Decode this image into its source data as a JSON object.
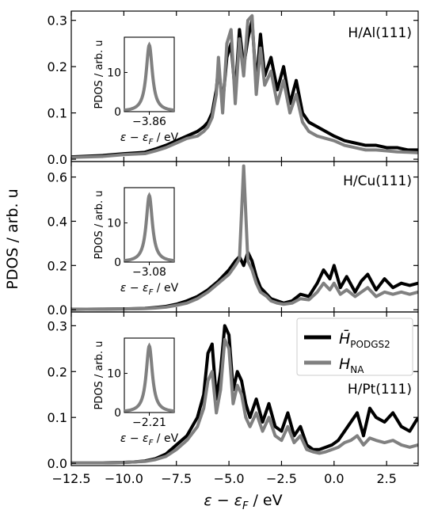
{
  "figure": {
    "shared_xlabel_main": "ε − ε",
    "shared_xlabel_sub": "F",
    "shared_xlabel_unit": " / eV",
    "shared_ylabel": "PDOS / arb. u"
  },
  "legend": {
    "placement": "top-right of bottom panel",
    "items": [
      {
        "main": "H̄",
        "sub": "PODGS2",
        "color": "#000000"
      },
      {
        "main": "H",
        "sub": "NA",
        "color": "#808080"
      }
    ]
  },
  "colors": {
    "podgs2": "#000000",
    "na": "#808080"
  },
  "chart_data": [
    {
      "type": "line",
      "title": "H/Al(111)",
      "xlim": [
        -12.5,
        4.0
      ],
      "ylim": [
        -0.005,
        0.32
      ],
      "xticks": [
        -12.5,
        -10.0,
        -7.5,
        -5.0,
        -2.5,
        0.0,
        2.5
      ],
      "yticks": [
        0.0,
        0.1,
        0.2,
        0.3
      ],
      "ytick_labels": [
        "0.0",
        "0.1",
        "0.2",
        "0.3"
      ],
      "series": [
        {
          "name": "H̄ PODGS2",
          "x": [
            -12.5,
            -11.0,
            -10.0,
            -9.0,
            -8.5,
            -8.0,
            -7.5,
            -7.0,
            -6.5,
            -6.2,
            -6.0,
            -5.8,
            -5.6,
            -5.5,
            -5.3,
            -5.1,
            -4.9,
            -4.7,
            -4.5,
            -4.3,
            -4.1,
            -3.9,
            -3.7,
            -3.5,
            -3.3,
            -3.0,
            -2.7,
            -2.4,
            -2.1,
            -1.8,
            -1.5,
            -1.2,
            -0.8,
            -0.4,
            0.0,
            0.5,
            1.0,
            1.5,
            2.0,
            2.5,
            3.0,
            3.5,
            4.0
          ],
          "y": [
            0.005,
            0.008,
            0.012,
            0.015,
            0.022,
            0.03,
            0.04,
            0.05,
            0.06,
            0.07,
            0.08,
            0.1,
            0.15,
            0.2,
            0.12,
            0.22,
            0.25,
            0.14,
            0.28,
            0.2,
            0.26,
            0.3,
            0.16,
            0.27,
            0.18,
            0.22,
            0.15,
            0.2,
            0.12,
            0.17,
            0.1,
            0.08,
            0.07,
            0.06,
            0.05,
            0.04,
            0.035,
            0.03,
            0.03,
            0.025,
            0.025,
            0.02,
            0.02
          ]
        },
        {
          "name": "H NA",
          "x": [
            -12.5,
            -11.0,
            -10.0,
            -9.0,
            -8.5,
            -8.0,
            -7.5,
            -7.0,
            -6.5,
            -6.2,
            -6.0,
            -5.8,
            -5.6,
            -5.5,
            -5.3,
            -5.1,
            -4.9,
            -4.7,
            -4.5,
            -4.3,
            -4.1,
            -3.9,
            -3.7,
            -3.5,
            -3.3,
            -3.0,
            -2.7,
            -2.4,
            -2.1,
            -1.8,
            -1.5,
            -1.2,
            -0.8,
            -0.4,
            0.0,
            0.5,
            1.0,
            1.5,
            2.0,
            2.5,
            3.0,
            3.5,
            4.0
          ],
          "y": [
            0.004,
            0.006,
            0.01,
            0.012,
            0.018,
            0.025,
            0.035,
            0.045,
            0.05,
            0.06,
            0.07,
            0.09,
            0.14,
            0.22,
            0.1,
            0.25,
            0.28,
            0.12,
            0.26,
            0.18,
            0.3,
            0.31,
            0.14,
            0.24,
            0.16,
            0.19,
            0.12,
            0.17,
            0.1,
            0.14,
            0.08,
            0.06,
            0.05,
            0.045,
            0.04,
            0.03,
            0.025,
            0.02,
            0.02,
            0.018,
            0.016,
            0.015,
            0.014
          ]
        }
      ],
      "inset": {
        "xtick_label": "−3.86",
        "ytick_labels": [
          "0",
          "10"
        ],
        "yticks": [
          0,
          10
        ],
        "ylim": [
          0,
          19
        ],
        "peak_height": 17,
        "half_width": 0.15,
        "xlim": [
          -1,
          1
        ]
      }
    },
    {
      "type": "line",
      "title": "H/Cu(111)",
      "xlim": [
        -12.5,
        4.0
      ],
      "ylim": [
        -0.01,
        0.67
      ],
      "xticks": [
        -12.5,
        -10.0,
        -7.5,
        -5.0,
        -2.5,
        0.0,
        2.5
      ],
      "yticks": [
        0.0,
        0.2,
        0.4,
        0.6
      ],
      "ytick_labels": [
        "0.0",
        "0.2",
        "0.4",
        "0.6"
      ],
      "series": [
        {
          "name": "H̄ PODGS2",
          "x": [
            -12.5,
            -11.0,
            -10.0,
            -9.0,
            -8.5,
            -8.0,
            -7.5,
            -7.0,
            -6.5,
            -6.0,
            -5.5,
            -5.0,
            -4.7,
            -4.5,
            -4.3,
            -4.1,
            -3.9,
            -3.7,
            -3.5,
            -3.2,
            -3.0,
            -2.7,
            -2.4,
            -2.0,
            -1.6,
            -1.2,
            -0.8,
            -0.5,
            -0.2,
            0.0,
            0.3,
            0.6,
            1.0,
            1.3,
            1.6,
            2.0,
            2.4,
            2.8,
            3.2,
            3.6,
            4.0
          ],
          "y": [
            0.002,
            0.003,
            0.004,
            0.006,
            0.01,
            0.015,
            0.025,
            0.04,
            0.06,
            0.09,
            0.13,
            0.18,
            0.22,
            0.24,
            0.2,
            0.26,
            0.22,
            0.15,
            0.1,
            0.07,
            0.05,
            0.04,
            0.03,
            0.04,
            0.07,
            0.06,
            0.12,
            0.18,
            0.14,
            0.2,
            0.1,
            0.15,
            0.08,
            0.13,
            0.16,
            0.09,
            0.14,
            0.1,
            0.12,
            0.11,
            0.12
          ]
        },
        {
          "name": "H NA",
          "x": [
            -12.5,
            -11.0,
            -10.0,
            -9.0,
            -8.5,
            -8.0,
            -7.5,
            -7.0,
            -6.5,
            -6.0,
            -5.5,
            -5.0,
            -4.7,
            -4.5,
            -4.3,
            -4.1,
            -3.9,
            -3.7,
            -3.5,
            -3.2,
            -3.0,
            -2.7,
            -2.4,
            -2.0,
            -1.6,
            -1.2,
            -0.8,
            -0.5,
            -0.2,
            0.0,
            0.3,
            0.6,
            1.0,
            1.3,
            1.6,
            2.0,
            2.4,
            2.8,
            3.2,
            3.6,
            4.0
          ],
          "y": [
            0.002,
            0.003,
            0.004,
            0.005,
            0.008,
            0.012,
            0.02,
            0.03,
            0.05,
            0.08,
            0.12,
            0.16,
            0.2,
            0.23,
            0.65,
            0.22,
            0.18,
            0.12,
            0.08,
            0.06,
            0.04,
            0.03,
            0.025,
            0.03,
            0.05,
            0.045,
            0.08,
            0.12,
            0.09,
            0.12,
            0.07,
            0.09,
            0.06,
            0.08,
            0.1,
            0.06,
            0.08,
            0.07,
            0.08,
            0.07,
            0.08
          ]
        }
      ],
      "inset": {
        "xtick_label": "−3.08",
        "ytick_labels": [
          "0",
          "10"
        ],
        "yticks": [
          0,
          10
        ],
        "ylim": [
          0,
          19
        ],
        "peak_height": 17,
        "half_width": 0.15,
        "xlim": [
          -1,
          1
        ]
      }
    },
    {
      "type": "line",
      "title": "H/Pt(111)",
      "xlim": [
        -12.5,
        4.0
      ],
      "ylim": [
        -0.005,
        0.33
      ],
      "xticks": [
        -12.5,
        -10.0,
        -7.5,
        -5.0,
        -2.5,
        0.0,
        2.5
      ],
      "yticks": [
        0.0,
        0.1,
        0.2,
        0.3
      ],
      "ytick_labels": [
        "0.0",
        "0.1",
        "0.2",
        "0.3"
      ],
      "series": [
        {
          "name": "H̄ PODGS2",
          "x": [
            -12.5,
            -11.0,
            -10.0,
            -9.5,
            -9.0,
            -8.5,
            -8.0,
            -7.5,
            -7.0,
            -6.5,
            -6.2,
            -6.0,
            -5.8,
            -5.6,
            -5.4,
            -5.2,
            -5.0,
            -4.8,
            -4.6,
            -4.4,
            -4.2,
            -4.0,
            -3.7,
            -3.4,
            -3.1,
            -2.8,
            -2.5,
            -2.2,
            -1.9,
            -1.6,
            -1.3,
            -1.0,
            -0.7,
            -0.4,
            -0.1,
            0.2,
            0.5,
            0.8,
            1.1,
            1.4,
            1.7,
            2.0,
            2.4,
            2.8,
            3.2,
            3.6,
            4.0
          ],
          "y": [
            0.001,
            0.001,
            0.002,
            0.003,
            0.005,
            0.01,
            0.02,
            0.04,
            0.06,
            0.1,
            0.15,
            0.24,
            0.26,
            0.14,
            0.2,
            0.3,
            0.28,
            0.16,
            0.2,
            0.18,
            0.13,
            0.1,
            0.14,
            0.09,
            0.13,
            0.08,
            0.07,
            0.11,
            0.06,
            0.08,
            0.04,
            0.03,
            0.03,
            0.035,
            0.04,
            0.05,
            0.07,
            0.09,
            0.11,
            0.06,
            0.12,
            0.1,
            0.09,
            0.11,
            0.08,
            0.07,
            0.1
          ]
        },
        {
          "name": "H NA",
          "x": [
            -12.5,
            -11.0,
            -10.0,
            -9.5,
            -9.0,
            -8.5,
            -8.0,
            -7.5,
            -7.0,
            -6.5,
            -6.2,
            -6.0,
            -5.8,
            -5.6,
            -5.4,
            -5.2,
            -5.0,
            -4.8,
            -4.6,
            -4.4,
            -4.2,
            -4.0,
            -3.7,
            -3.4,
            -3.1,
            -2.8,
            -2.5,
            -2.2,
            -1.9,
            -1.6,
            -1.3,
            -1.0,
            -0.7,
            -0.4,
            -0.1,
            0.2,
            0.5,
            0.8,
            1.1,
            1.4,
            1.7,
            2.0,
            2.4,
            2.8,
            3.2,
            3.6,
            4.0
          ],
          "y": [
            0.001,
            0.001,
            0.002,
            0.003,
            0.004,
            0.008,
            0.015,
            0.03,
            0.05,
            0.08,
            0.12,
            0.18,
            0.2,
            0.11,
            0.16,
            0.27,
            0.25,
            0.13,
            0.17,
            0.15,
            0.1,
            0.08,
            0.11,
            0.07,
            0.1,
            0.06,
            0.05,
            0.08,
            0.045,
            0.06,
            0.03,
            0.025,
            0.022,
            0.025,
            0.03,
            0.035,
            0.045,
            0.05,
            0.06,
            0.04,
            0.055,
            0.05,
            0.045,
            0.05,
            0.04,
            0.035,
            0.04
          ]
        }
      ],
      "inset": {
        "xtick_label": "−2.21",
        "ytick_labels": [
          "0",
          "10"
        ],
        "yticks": [
          0,
          10
        ],
        "ylim": [
          0,
          19
        ],
        "peak_height": 17,
        "half_width": 0.15,
        "xlim": [
          -1,
          1
        ]
      }
    }
  ]
}
